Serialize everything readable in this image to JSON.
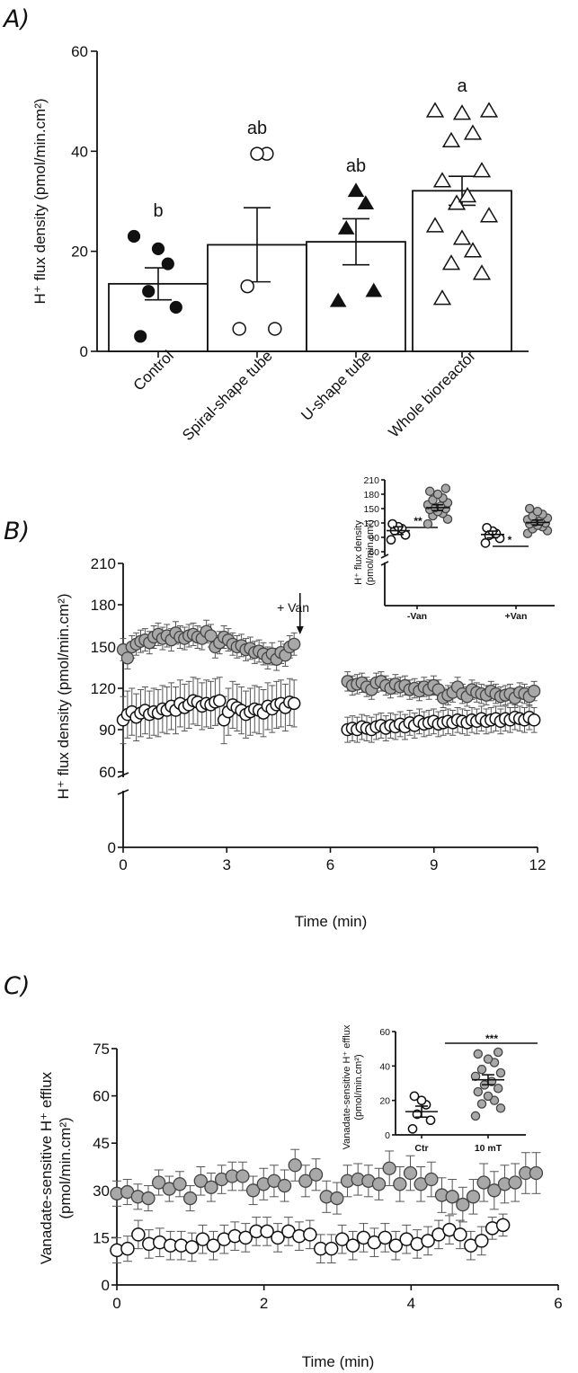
{
  "chart_data": [
    {
      "id": "A",
      "panel_label": "A)",
      "type": "bar",
      "ylabel": "H⁺ flux density (pmol/min.cm²)",
      "ylim": [
        0,
        60
      ],
      "yticks": [
        0,
        20,
        40,
        60
      ],
      "categories": [
        "Control",
        "Spiral-shape tube",
        "U-shape tube",
        "Whole bioreactor"
      ],
      "values": [
        13.5,
        21.3,
        21.9,
        32.1
      ],
      "sem": [
        3.2,
        7.4,
        4.6,
        2.9
      ],
      "significance": [
        "b",
        "ab",
        "ab",
        "a"
      ],
      "markers": [
        "filled-circle",
        "open-circle",
        "filled-triangle",
        "open-triangle"
      ],
      "points": [
        [
          3,
          8.8,
          12,
          17.5,
          20.5,
          23
        ],
        [
          4.5,
          4.5,
          13,
          39.5,
          39.5
        ],
        [
          10,
          12,
          24.5,
          29.5,
          32
        ],
        [
          10.5,
          15.5,
          17.5,
          20,
          22.5,
          25,
          27,
          29.5,
          31,
          34,
          36,
          42,
          43.5,
          47.5,
          48,
          48
        ]
      ]
    },
    {
      "id": "B",
      "panel_label": "B)",
      "type": "scatter",
      "xlabel": "Time (min)",
      "ylabel": "H⁺ flux density (pmol/min.cm²)",
      "xlim": [
        0,
        12
      ],
      "xticks": [
        0,
        3,
        6,
        9,
        12
      ],
      "yticks": [
        "0",
        "60",
        "90",
        "120",
        "150",
        "180",
        "210"
      ],
      "annotation": "+ Van",
      "annotation_time": 5.2,
      "series": [
        {
          "name": "grey",
          "fill": "#a8a8a8",
          "segments": [
            {
              "t_start": 0.0,
              "t_end": 4.95,
              "values": [
                148,
                142,
                150,
                152,
                154,
                155,
                153,
                157,
                159,
                156,
                158,
                155,
                160,
                157,
                156,
                158,
                159,
                157,
                156,
                161,
                158,
                150,
                153,
                157,
                155,
                152,
                150,
                151,
                148,
                149,
                146,
                147,
                145,
                142,
                145,
                141,
                146,
                144,
                150,
                152
              ],
              "errors": [
                8,
                8,
                8,
                8,
                8,
                8,
                8,
                8,
                8,
                8,
                8,
                8,
                8,
                8,
                8,
                8,
                8,
                8,
                8,
                8,
                8,
                8,
                8,
                8,
                8,
                8,
                8,
                8,
                8,
                8,
                8,
                8,
                8,
                8,
                8,
                8,
                8,
                8,
                8,
                8
              ]
            },
            {
              "t_start": 6.5,
              "t_end": 11.9,
              "values": [
                125,
                122,
                123,
                124,
                121,
                119,
                124,
                125,
                122,
                120,
                123,
                121,
                122,
                119,
                120,
                118,
                121,
                119,
                122,
                119,
                113,
                115,
                117,
                121,
                116,
                114,
                119,
                117,
                116,
                115,
                118,
                116,
                114,
                115,
                116,
                113,
                117,
                116,
                114,
                118
              ],
              "errors": [
                7,
                7,
                7,
                7,
                7,
                7,
                7,
                7,
                7,
                7,
                7,
                7,
                7,
                7,
                7,
                7,
                7,
                7,
                7,
                7,
                7,
                7,
                7,
                7,
                7,
                7,
                7,
                7,
                7,
                7,
                7,
                7,
                7,
                7,
                7,
                7,
                7,
                7,
                7,
                7
              ]
            }
          ]
        },
        {
          "name": "white",
          "fill": "#ffffff",
          "segments": [
            {
              "t_start": 0.0,
              "t_end": 4.95,
              "values": [
                97,
                101,
                103,
                99,
                102,
                104,
                101,
                103,
                102,
                105,
                104,
                107,
                104,
                109,
                106,
                108,
                111,
                110,
                107,
                109,
                108,
                110,
                111,
                97,
                103,
                108,
                106,
                104,
                101,
                103,
                105,
                104,
                102,
                107,
                105,
                108,
                109,
                106,
                110,
                109
              ],
              "errors": [
                17,
                17,
                17,
                17,
                17,
                17,
                17,
                17,
                17,
                17,
                17,
                17,
                17,
                17,
                17,
                17,
                17,
                17,
                17,
                17,
                17,
                17,
                17,
                17,
                17,
                17,
                17,
                17,
                17,
                17,
                17,
                17,
                17,
                17,
                17,
                17,
                17,
                17,
                17,
                17
              ]
            },
            {
              "t_start": 6.5,
              "t_end": 11.9,
              "values": [
                90,
                91,
                90,
                92,
                91,
                90,
                92,
                93,
                91,
                93,
                92,
                94,
                92,
                95,
                93,
                96,
                94,
                95,
                96,
                94,
                95,
                96,
                95,
                97,
                96,
                95,
                97,
                96,
                98,
                96,
                97,
                98,
                96,
                98,
                97,
                99,
                98,
                97,
                99,
                97
              ],
              "errors": [
                9,
                9,
                9,
                9,
                9,
                9,
                9,
                9,
                9,
                9,
                9,
                9,
                9,
                9,
                9,
                9,
                9,
                9,
                9,
                9,
                9,
                9,
                9,
                9,
                9,
                9,
                9,
                9,
                9,
                9,
                9,
                9,
                9,
                9,
                9,
                9,
                9,
                9,
                9,
                9
              ]
            }
          ]
        }
      ],
      "inset": {
        "type": "scatter",
        "ylabel_line1": "H⁺ flux density",
        "ylabel_line2": "(pmol/min.cm²)",
        "yticks": [
          "60",
          "90",
          "120",
          "150",
          "180",
          "210"
        ],
        "categories": [
          "-Van",
          "+Van"
        ],
        "significance": [
          "**",
          "*"
        ],
        "groups": [
          {
            "category": 0,
            "fill": "#ffffff",
            "mean": 104,
            "sem": 8,
            "points": [
              85,
              95,
              104,
              108,
              112,
              118
            ]
          },
          {
            "category": 0,
            "fill": "#a8a8a8",
            "mean": 152,
            "sem": 6,
            "points": [
              118,
              128,
              135,
              140,
              144,
              148,
              150,
              152,
              155,
              158,
              162,
              168,
              172,
              180,
              186,
              192
            ]
          },
          {
            "category": 1,
            "fill": "#ffffff",
            "mean": 96,
            "sem": 7,
            "points": [
              78,
              88,
              94,
              98,
              103,
              110
            ]
          },
          {
            "category": 1,
            "fill": "#a8a8a8",
            "mean": 121,
            "sem": 5,
            "points": [
              98,
              104,
              108,
              112,
              115,
              118,
              120,
              122,
              124,
              127,
              130,
              134,
              138,
              144,
              150
            ]
          }
        ]
      }
    },
    {
      "id": "C",
      "panel_label": "C)",
      "type": "scatter",
      "xlabel": "Time (min)",
      "ylabel_line1": "Vanadate-sensitive H⁺ efflux",
      "ylabel_line2": "(pmol/min.cm²)",
      "xlim": [
        0,
        6
      ],
      "ylim": [
        0,
        75
      ],
      "xticks": [
        0,
        2,
        4,
        6
      ],
      "yticks": [
        0,
        15,
        30,
        45,
        60,
        75
      ],
      "series": [
        {
          "name": "grey",
          "fill": "#a8a8a8",
          "segments": [
            {
              "t_start": 0.0,
              "t_end": 5.7,
              "values": [
                29,
                29.5,
                28,
                27.5,
                32.5,
                30.5,
                32,
                27.5,
                33,
                31,
                33.5,
                34.5,
                34.5,
                30,
                32,
                33,
                31.5,
                38,
                33,
                35,
                28,
                27.5,
                33,
                33.5,
                33,
                32,
                37,
                32,
                35.5,
                32,
                33.5,
                28.5,
                28,
                25.5,
                28,
                32.5,
                30,
                32,
                32.5,
                35.5,
                35.5
              ],
              "errors": [
                4,
                4,
                4,
                4,
                4,
                4,
                4,
                4,
                4.5,
                4.5,
                4.5,
                4.5,
                4.5,
                4.5,
                5,
                5,
                5,
                5,
                5,
                5,
                5,
                5,
                5,
                5,
                5,
                5,
                5.5,
                5.5,
                5.5,
                5.5,
                5.5,
                5.5,
                5.5,
                5.5,
                5.5,
                6,
                6,
                6,
                6,
                6.5,
                6.5
              ]
            }
          ]
        },
        {
          "name": "white",
          "fill": "#ffffff",
          "segments": [
            {
              "t_start": 0.0,
              "t_end": 5.25,
              "values": [
                11,
                11.5,
                16,
                13,
                13.5,
                12.5,
                12.5,
                12,
                14.5,
                12.5,
                14.5,
                15.5,
                15,
                17,
                17,
                15,
                17,
                15.5,
                16,
                11.5,
                11.5,
                14.5,
                12.5,
                15,
                13.5,
                15,
                12.5,
                14.5,
                13,
                14,
                16,
                17.5,
                16,
                12.5,
                14,
                18,
                19
              ],
              "errors": [
                4,
                4,
                4.5,
                4.5,
                4.5,
                4.5,
                4.5,
                4.5,
                4.5,
                4.5,
                4.5,
                4.5,
                4.5,
                4.5,
                4.5,
                4.5,
                4.5,
                4.5,
                4.5,
                4.5,
                4.5,
                4.5,
                4.5,
                4.5,
                4.5,
                4.5,
                4.5,
                4.5,
                4.5,
                4.5,
                4.5,
                4.5,
                4.5,
                4.5,
                4.5,
                3.5,
                3.5
              ]
            }
          ]
        }
      ],
      "inset": {
        "type": "scatter",
        "ylabel_line1": "Vanadate-sensitive H⁺ efflux",
        "ylabel_line2": "(pmol/min.cm²)",
        "ylim": [
          0,
          60
        ],
        "yticks": [
          0,
          20,
          40,
          60
        ],
        "categories": [
          "Ctr",
          "10 mT"
        ],
        "significance": "***",
        "groups": [
          {
            "category": 0,
            "fill": "#ffffff",
            "mean": 13.5,
            "sem": 3.2,
            "points": [
              3.5,
              8.5,
              12,
              17.5,
              20,
              22.5
            ]
          },
          {
            "category": 1,
            "fill": "#a8a8a8",
            "mean": 32,
            "sem": 2.9,
            "points": [
              11,
              15.5,
              18,
              20,
              22.5,
              25,
              27,
              29,
              31,
              34,
              36,
              38,
              42,
              44,
              47,
              48
            ]
          }
        ]
      }
    }
  ]
}
